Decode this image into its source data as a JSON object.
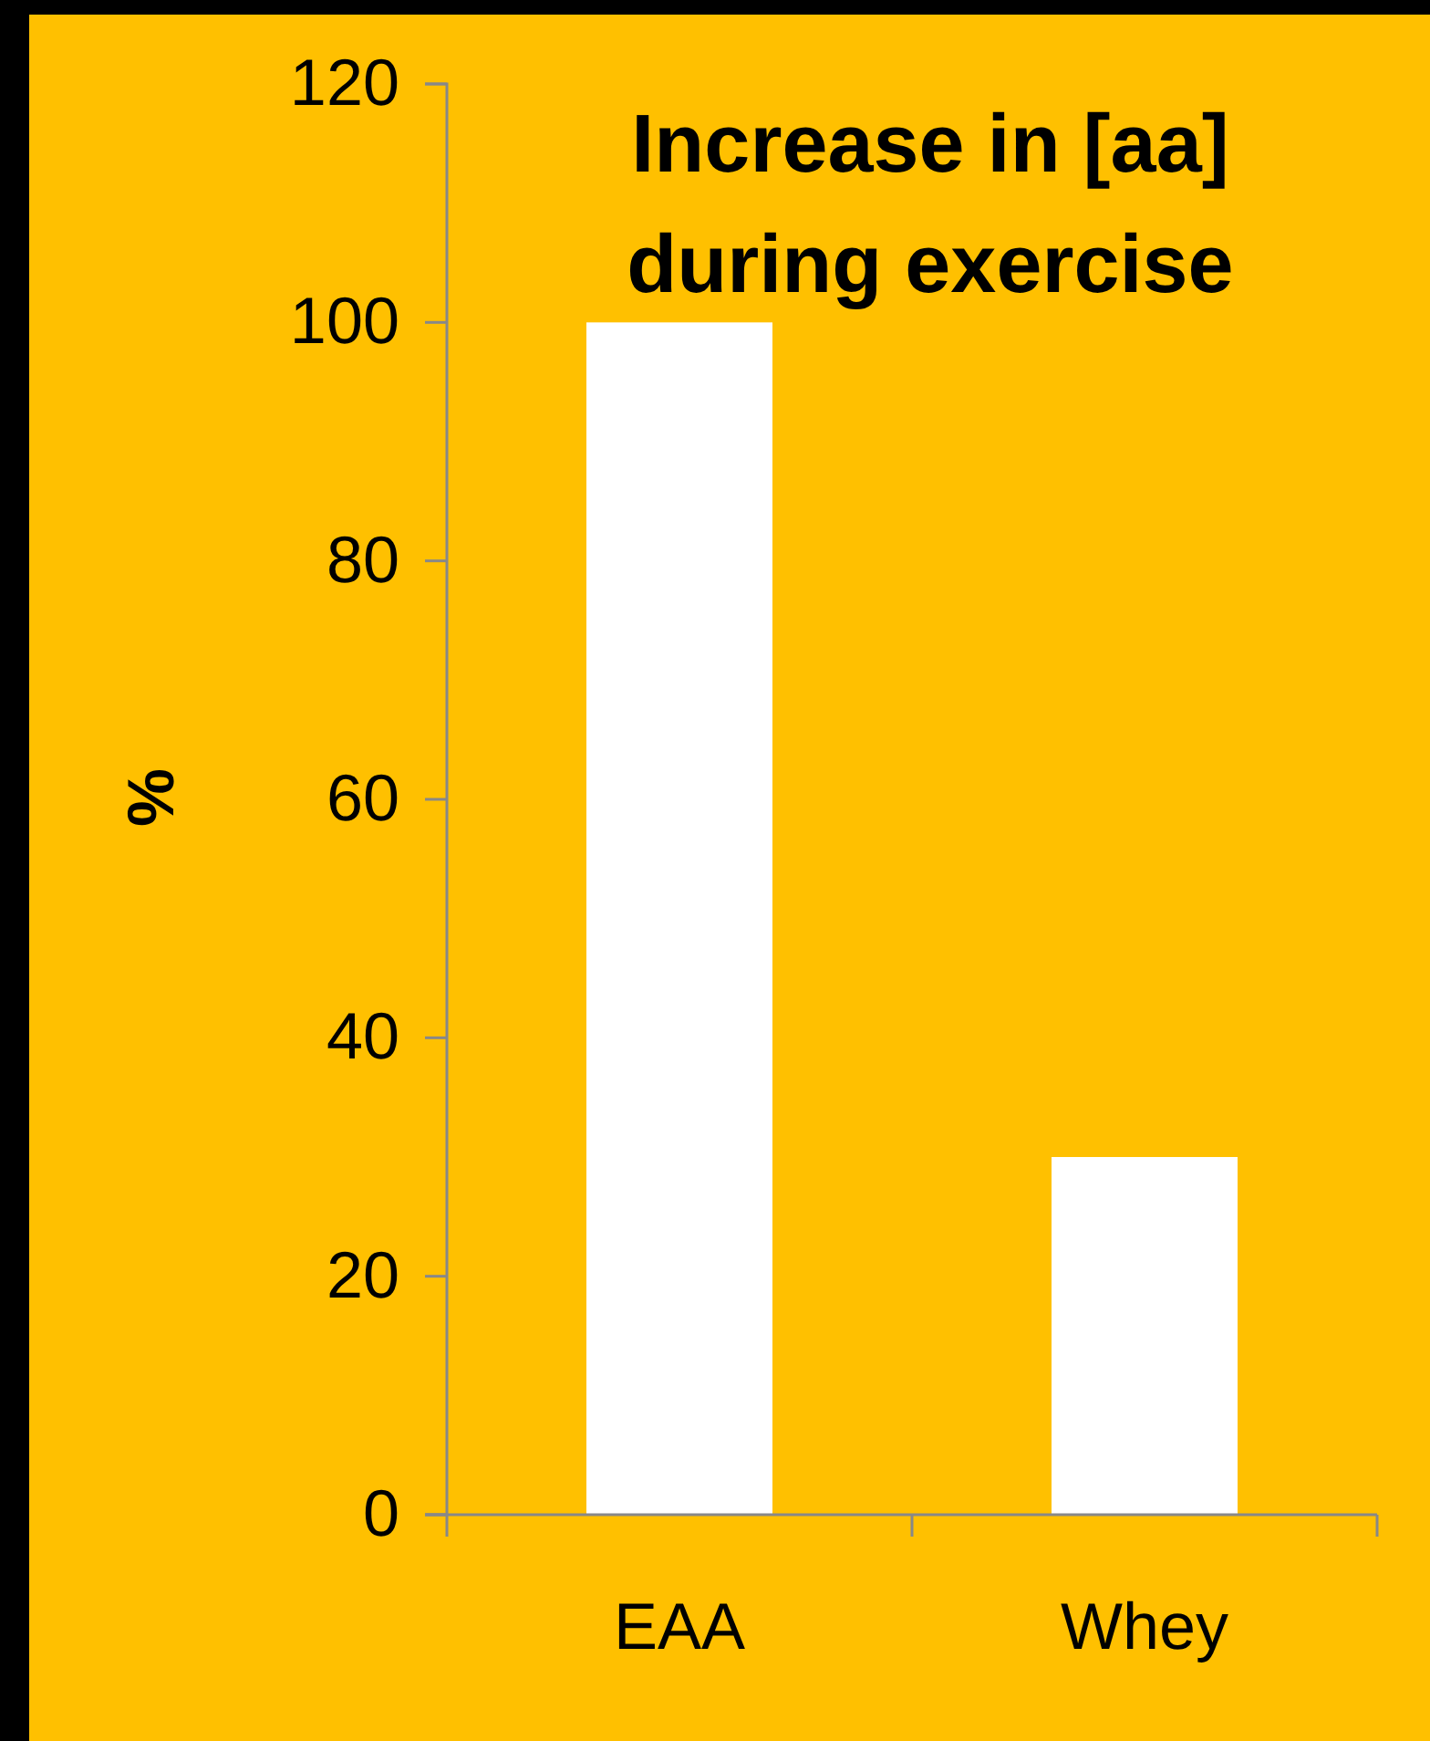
{
  "chart_data": {
    "type": "bar",
    "title": "Increase in [aa]\nduring exercise",
    "ylabel": "%",
    "categories": [
      "EAA",
      "Whey"
    ],
    "values": [
      100,
      30
    ],
    "color": "#ffffff",
    "ylim": [
      0,
      120
    ],
    "yticks": [
      0,
      20,
      40,
      60,
      80,
      100,
      120
    ]
  }
}
